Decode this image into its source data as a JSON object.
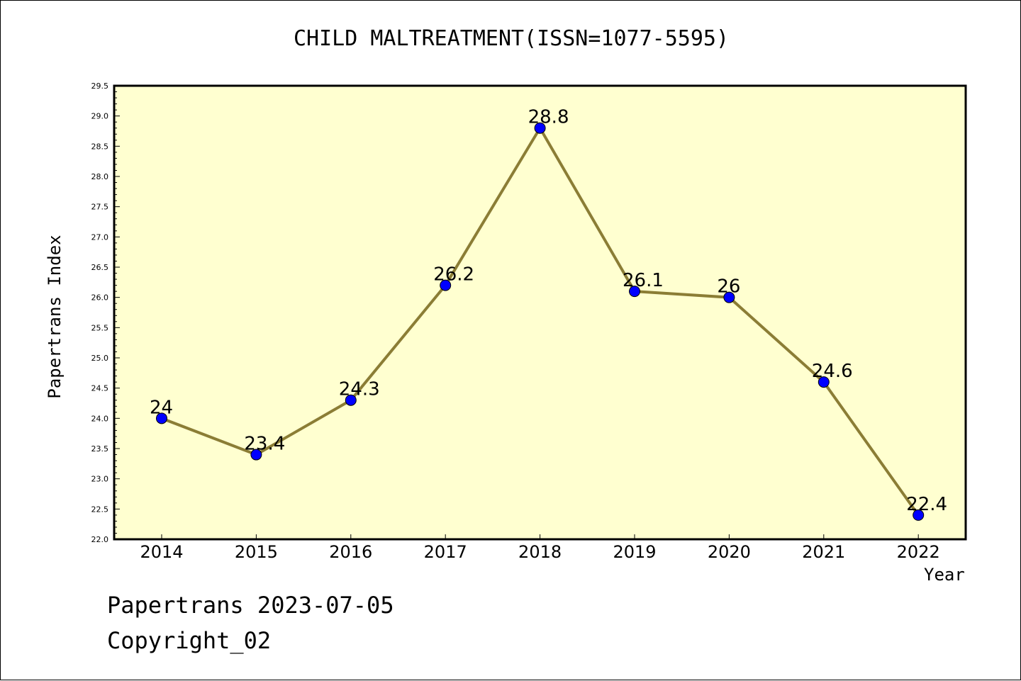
{
  "chart_data": {
    "type": "line",
    "title": "CHILD MALTREATMENT(ISSN=1077-5595)",
    "xlabel": "Year",
    "ylabel": "Papertrans Index",
    "categories": [
      "2014",
      "2015",
      "2016",
      "2017",
      "2018",
      "2019",
      "2020",
      "2021",
      "2022"
    ],
    "series": [
      {
        "values": [
          24,
          23.4,
          24.3,
          26.2,
          28.8,
          26.1,
          26,
          24.6,
          22.4
        ],
        "labels": [
          "24",
          "23.4",
          "24.3",
          "26.2",
          "28.8",
          "26.1",
          "26",
          "24.6",
          "22.4"
        ]
      }
    ],
    "ylim": [
      22.0,
      29.5
    ],
    "yticks": [
      "22.0",
      "22.5",
      "23.0",
      "23.5",
      "24.0",
      "24.5",
      "25.0",
      "25.5",
      "26.0",
      "26.5",
      "27.0",
      "27.5",
      "28.0",
      "28.5",
      "29.0",
      "29.5"
    ],
    "grid": false,
    "colors": {
      "plot_background": "#ffffd0",
      "line": "#8b7d35",
      "marker": "#0000ff"
    }
  },
  "footer": {
    "line1": "Papertrans 2023-07-05",
    "line2": "Copyright_02"
  }
}
